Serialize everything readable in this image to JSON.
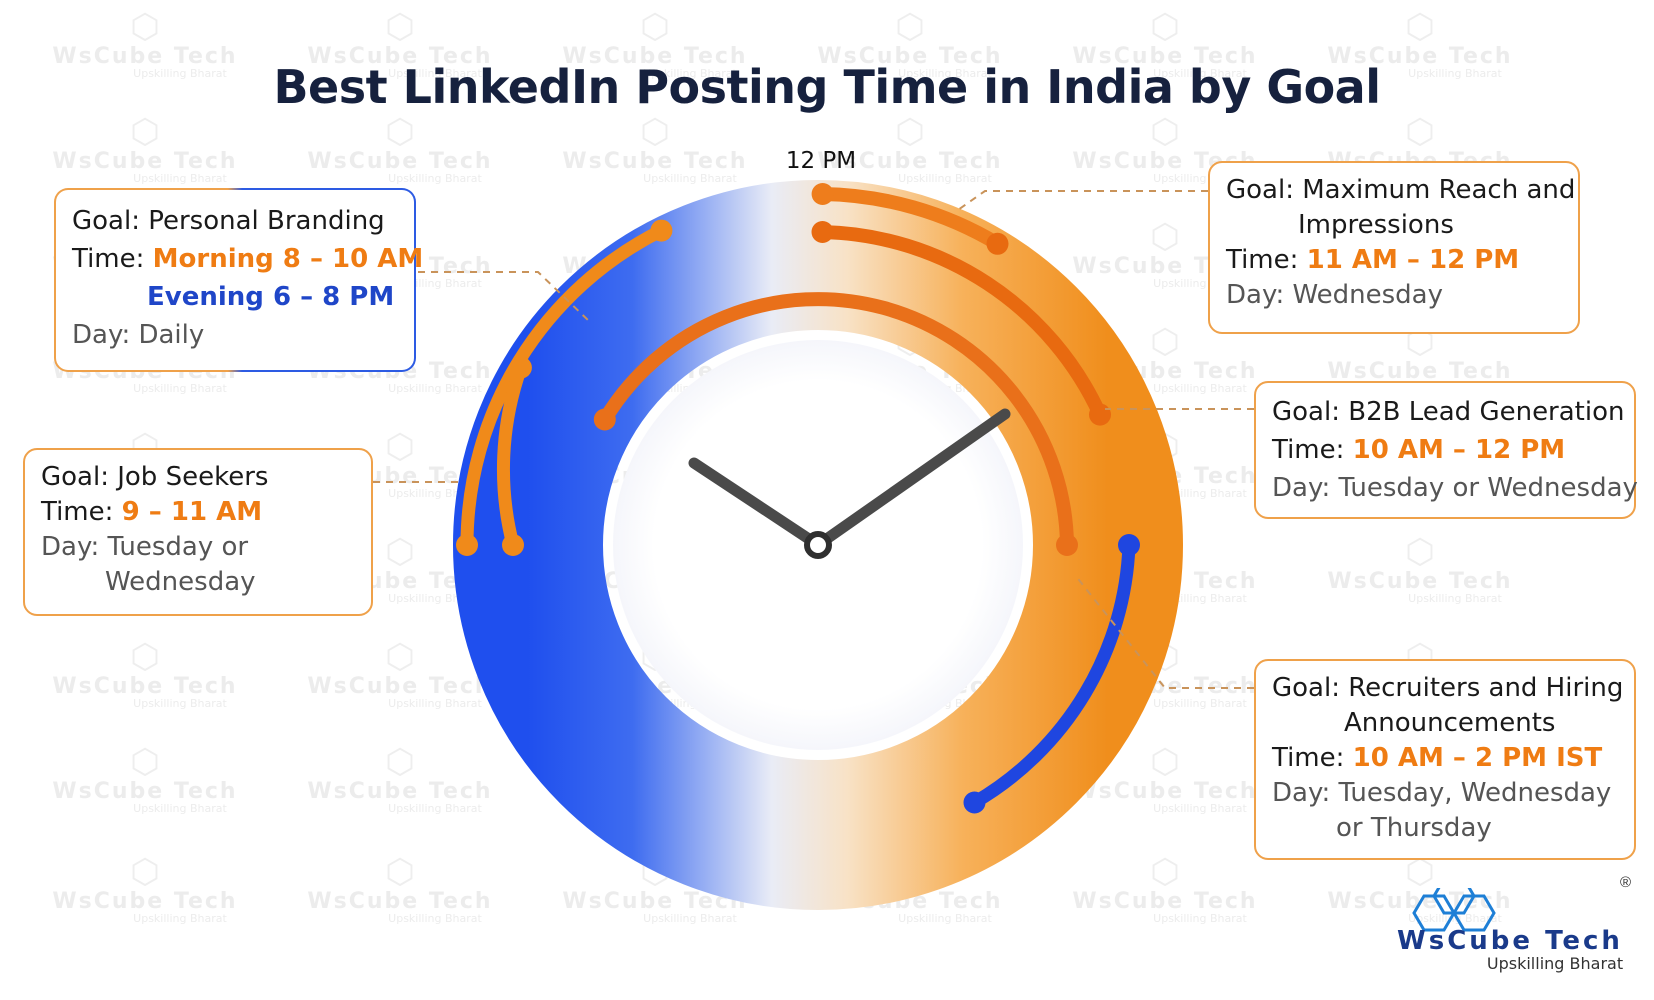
{
  "title": "Best LinkedIn Posting Time in India by Goal",
  "clock": {
    "top_label": "12 PM",
    "colors": {
      "orange": "#ef7c13",
      "deep_orange": "#e86a10",
      "blue": "#1f46e0",
      "hand": "#4a4a4a"
    }
  },
  "goals": {
    "personal_branding": {
      "goal": "Goal: Personal Branding",
      "time_label": "Time:",
      "time_morning": "Morning 8 – 10 AM",
      "time_evening": "Evening 6 – 8 PM",
      "day": "Day: Daily"
    },
    "job_seekers": {
      "goal": "Goal: Job Seekers",
      "time_label": "Time:",
      "time": "9 – 11 AM",
      "day_line1": "Day: Tuesday or",
      "day_line2": "Wednesday"
    },
    "max_reach": {
      "goal_line1": "Goal: Maximum Reach and",
      "goal_line2": "Impressions",
      "time_label": "Time:",
      "time": "11 AM – 12 PM",
      "day": "Day: Wednesday"
    },
    "b2b": {
      "goal": "Goal: B2B Lead Generation",
      "time_label": "Time:",
      "time": "10 AM – 12 PM",
      "day": "Day: Tuesday or Wednesday"
    },
    "recruiters": {
      "goal_line1": "Goal: Recruiters and Hiring",
      "goal_line2": "Announcements",
      "time_label": "Time:",
      "time": "10 AM – 2 PM IST",
      "day_line1": "Day: Tuesday, Wednesday",
      "day_line2": "or Thursday"
    }
  },
  "watermark": {
    "brand": "WsCube Tech",
    "tagline": "Upskilling Bharat"
  },
  "logo": {
    "brand": "WsCube Tech",
    "tagline": "Upskilling Bharat",
    "reg": "®"
  }
}
